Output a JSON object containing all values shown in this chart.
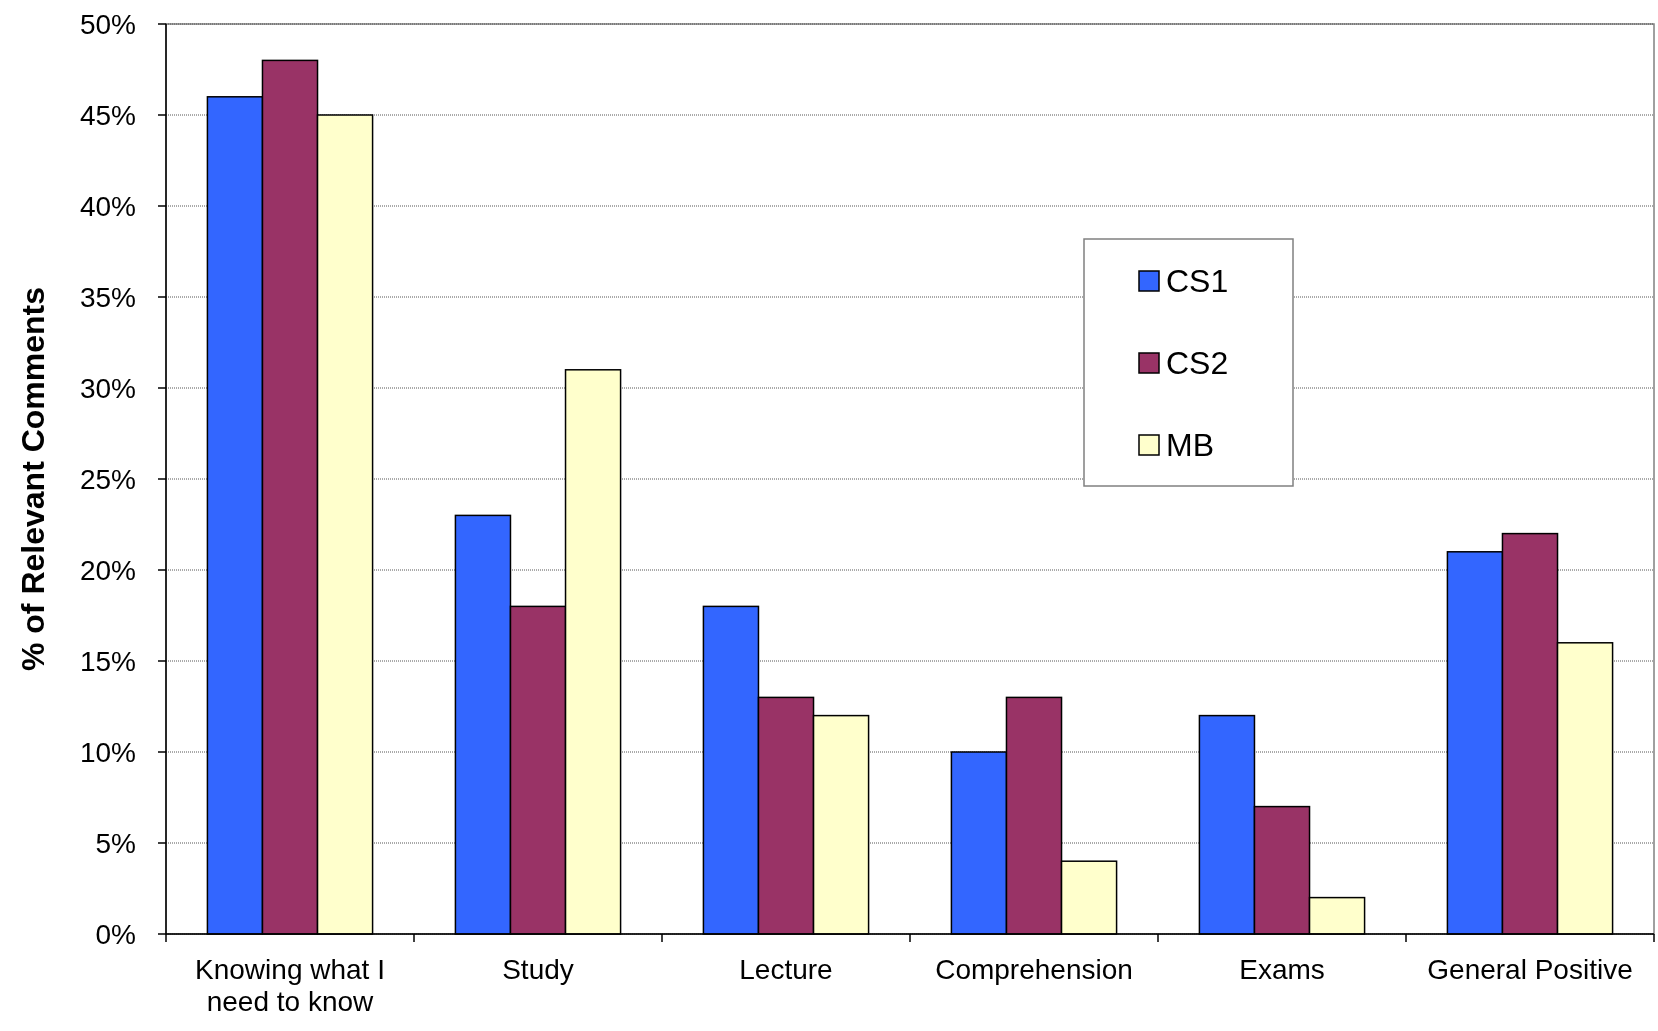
{
  "chart_data": {
    "type": "bar",
    "ylabel": "% of Relevant Comments",
    "categories": [
      "Knowing what I need to know",
      "Study",
      "Lecture",
      "Comprehension",
      "Exams",
      "General Positive"
    ],
    "series": [
      {
        "name": "CS1",
        "color": "#3366ff",
        "values": [
          46,
          23,
          18,
          10,
          12,
          21
        ]
      },
      {
        "name": "CS2",
        "color": "#993366",
        "values": [
          48,
          18,
          13,
          13,
          7,
          22
        ]
      },
      {
        "name": "MB",
        "color": "#ffffcc",
        "values": [
          45,
          31,
          12,
          4,
          2,
          16
        ]
      }
    ],
    "ylim": [
      0,
      50
    ],
    "yticks": [
      {
        "value": 0,
        "label": "0%"
      },
      {
        "value": 5,
        "label": "5%"
      },
      {
        "value": 10,
        "label": "10%"
      },
      {
        "value": 15,
        "label": "15%"
      },
      {
        "value": 20,
        "label": "20%"
      },
      {
        "value": 25,
        "label": "25%"
      },
      {
        "value": 30,
        "label": "30%"
      },
      {
        "value": 35,
        "label": "35%"
      },
      {
        "value": 40,
        "label": "40%"
      },
      {
        "value": 45,
        "label": "45%"
      },
      {
        "value": 50,
        "label": "50%"
      }
    ],
    "grid": "y",
    "legend": "right"
  }
}
